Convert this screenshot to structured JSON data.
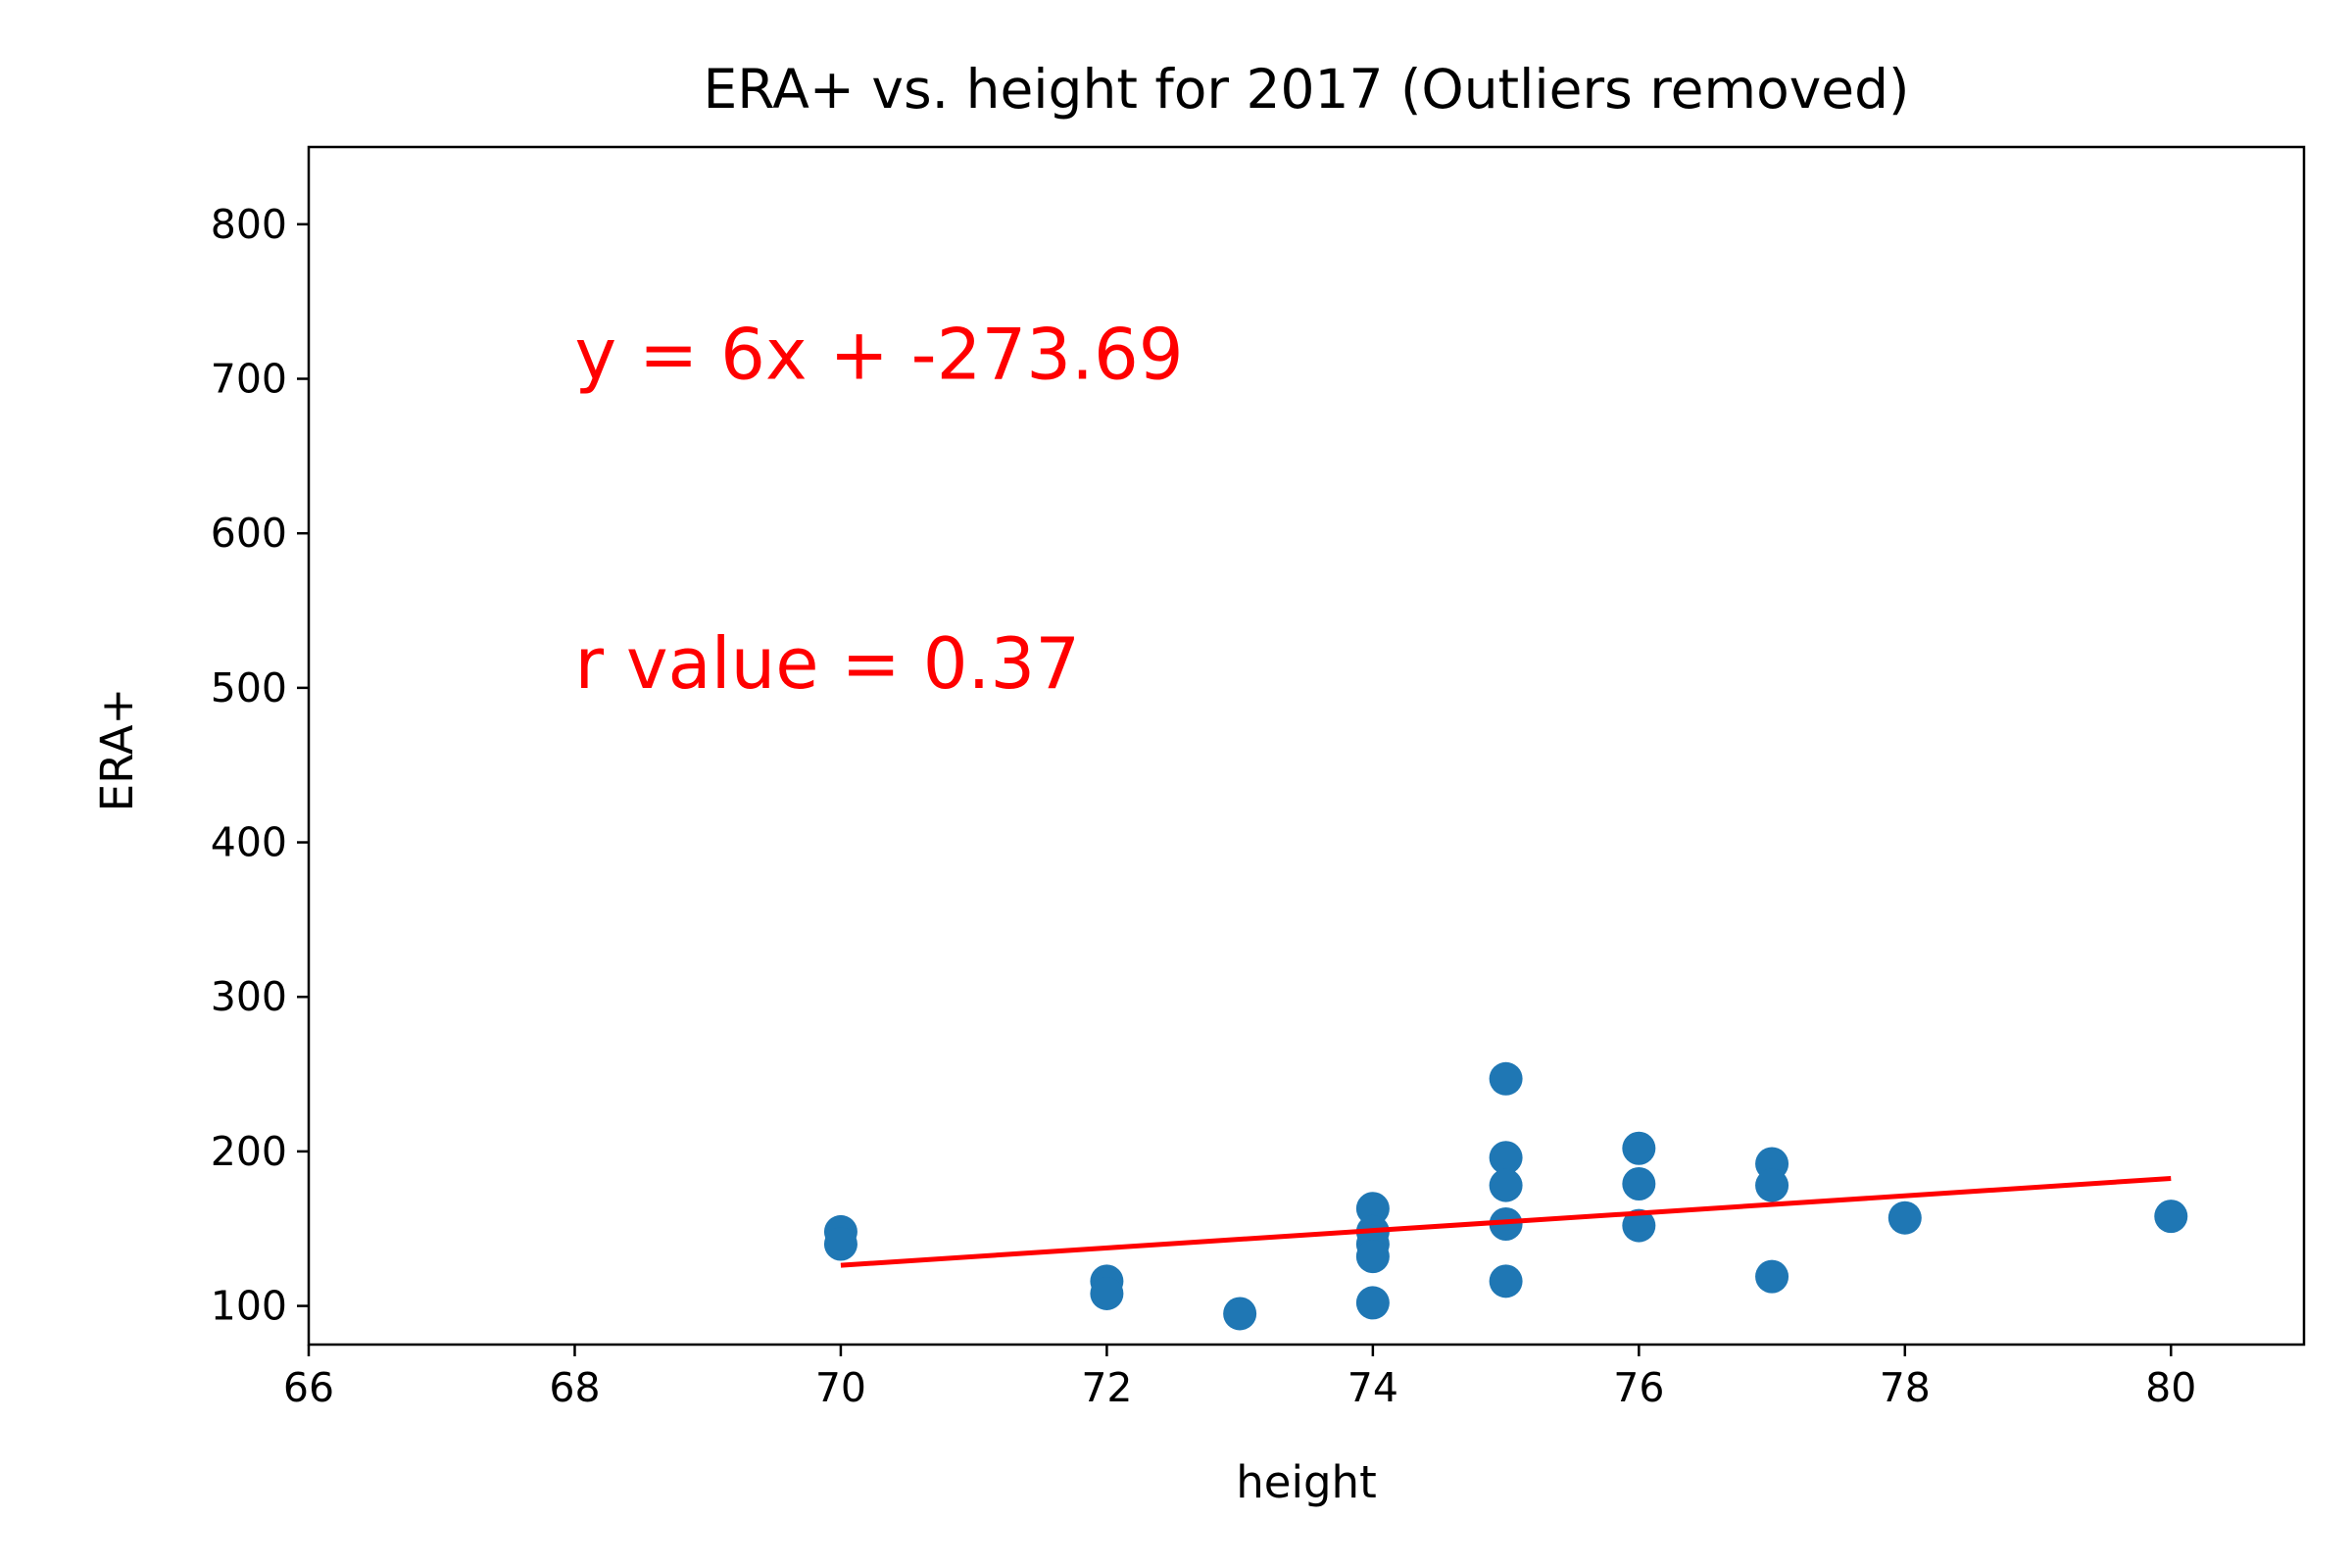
{
  "chart_data": {
    "type": "scatter",
    "title": "ERA+ vs. height for 2017 (Outliers removed)",
    "xlabel": "height",
    "ylabel": "ERA+",
    "xlim": [
      66,
      81
    ],
    "ylim": [
      75,
      850
    ],
    "xticks": [
      66,
      68,
      70,
      72,
      74,
      76,
      78,
      80
    ],
    "yticks": [
      100,
      200,
      300,
      400,
      500,
      600,
      700,
      800
    ],
    "grid": false,
    "colors": {
      "points": "#1f77b4",
      "regression": "#ff0000"
    },
    "series": [
      {
        "values": [
          {
            "x": 70,
            "y": 148
          },
          {
            "x": 70,
            "y": 140
          },
          {
            "x": 72,
            "y": 116
          },
          {
            "x": 72,
            "y": 108
          },
          {
            "x": 73,
            "y": 95
          },
          {
            "x": 74,
            "y": 163
          },
          {
            "x": 74,
            "y": 148
          },
          {
            "x": 74,
            "y": 140
          },
          {
            "x": 74,
            "y": 132
          },
          {
            "x": 74,
            "y": 102
          },
          {
            "x": 75,
            "y": 247
          },
          {
            "x": 75,
            "y": 196
          },
          {
            "x": 75,
            "y": 178
          },
          {
            "x": 75,
            "y": 153
          },
          {
            "x": 75,
            "y": 116
          },
          {
            "x": 76,
            "y": 202
          },
          {
            "x": 76,
            "y": 179
          },
          {
            "x": 76,
            "y": 152
          },
          {
            "x": 77,
            "y": 192
          },
          {
            "x": 77,
            "y": 178
          },
          {
            "x": 77,
            "y": 119
          },
          {
            "x": 78,
            "y": 157
          },
          {
            "x": 80,
            "y": 158
          }
        ]
      }
    ],
    "regression": {
      "x_start": 70,
      "y_start": 126.3,
      "x_end": 80,
      "y_end": 182.5
    },
    "annotations": [
      {
        "text": "y = 6x + -273.69",
        "x": 68,
        "y": 700,
        "color": "#ff0000"
      },
      {
        "text": "r value = 0.37",
        "x": 68,
        "y": 500,
        "color": "#ff0000"
      }
    ]
  }
}
